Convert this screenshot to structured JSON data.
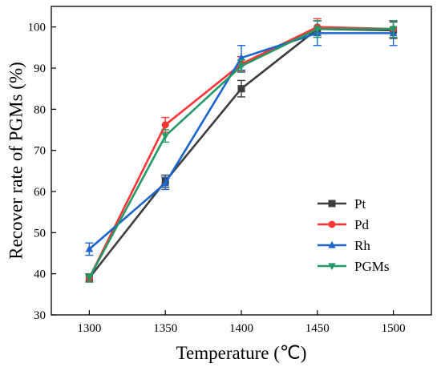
{
  "chart_data": {
    "type": "line",
    "xlabel": "Temperature (℃)",
    "ylabel": "Recover rate of PGMs (%)",
    "xlim": [
      1275,
      1525
    ],
    "ylim": [
      30,
      105
    ],
    "x_ticks": [
      1300,
      1350,
      1400,
      1450,
      1500
    ],
    "y_ticks": [
      30,
      40,
      50,
      60,
      70,
      80,
      90,
      100
    ],
    "grid": false,
    "legend_position": "right",
    "series": [
      {
        "name": "Pt",
        "color": "#3d3d3d",
        "marker": "square",
        "x": [
          1300,
          1350,
          1400,
          1450,
          1500
        ],
        "values": [
          39,
          62.5,
          85,
          99.5,
          99.2
        ],
        "errors": [
          1.0,
          1.5,
          2.0,
          2.0,
          2.0
        ]
      },
      {
        "name": "Pd",
        "color": "#ff3333",
        "marker": "circle",
        "x": [
          1300,
          1350,
          1400,
          1450,
          1500
        ],
        "values": [
          39,
          76.2,
          91,
          100,
          99.5
        ],
        "errors": [
          1.0,
          1.8,
          1.8,
          2.0,
          2.0
        ]
      },
      {
        "name": "Rh",
        "color": "#1a66cc",
        "marker": "triangle-up",
        "x": [
          1300,
          1350,
          1400,
          1450,
          1500
        ],
        "values": [
          46,
          62,
          92.5,
          98.5,
          98.5
        ],
        "errors": [
          1.5,
          1.5,
          3.0,
          3.0,
          3.0
        ]
      },
      {
        "name": "PGMs",
        "color": "#229966",
        "marker": "triangle-down",
        "x": [
          1300,
          1350,
          1400,
          1450,
          1500
        ],
        "values": [
          39,
          73.5,
          90.5,
          99.5,
          99.5
        ],
        "errors": [
          1.0,
          1.5,
          1.5,
          2.0,
          2.0
        ]
      }
    ]
  }
}
